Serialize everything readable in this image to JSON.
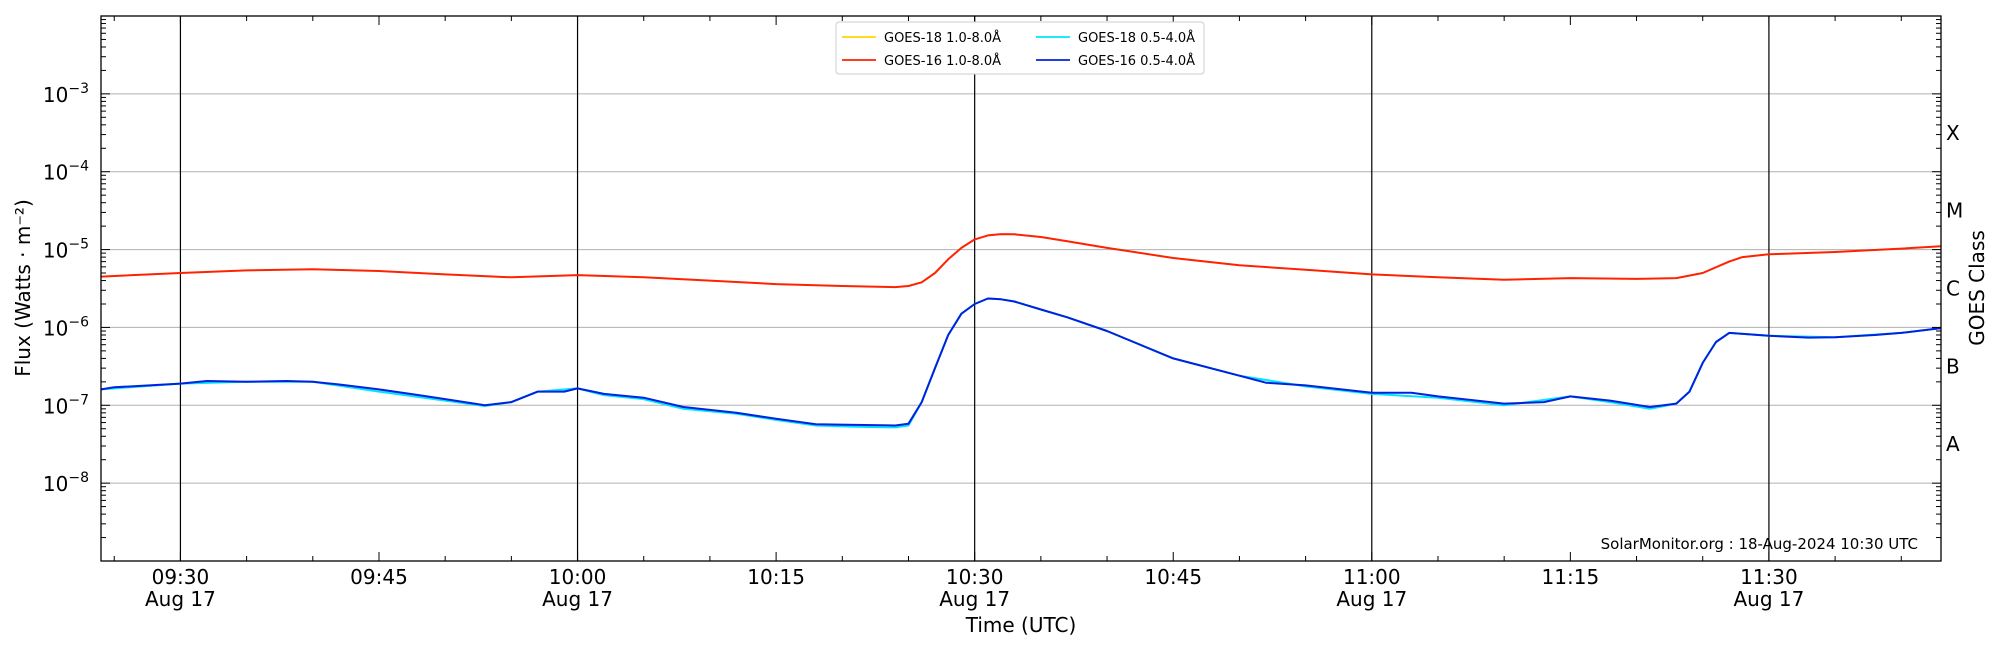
{
  "chart_data": {
    "type": "line",
    "y_scale": "log",
    "x_label": "Time (UTC)",
    "y_label": "Flux (Watts · m⁻²)",
    "y2_label": "GOES Class",
    "x_range": [
      "09:24",
      "11:43"
    ],
    "y_range": [
      1e-09,
      0.01
    ],
    "grid": "horizontal at decades; vertical at 30-minute marks",
    "legend_placement": "top-center",
    "x_tick_labels": [
      {
        "time": "09:30",
        "line1": "09:30",
        "line2": "Aug 17"
      },
      {
        "time": "09:45",
        "line1": "09:45",
        "line2": ""
      },
      {
        "time": "10:00",
        "line1": "10:00",
        "line2": "Aug 17"
      },
      {
        "time": "10:15",
        "line1": "10:15",
        "line2": ""
      },
      {
        "time": "10:30",
        "line1": "10:30",
        "line2": "Aug 17"
      },
      {
        "time": "10:45",
        "line1": "10:45",
        "line2": ""
      },
      {
        "time": "11:00",
        "line1": "11:00",
        "line2": "Aug 17"
      },
      {
        "time": "11:15",
        "line1": "11:15",
        "line2": ""
      },
      {
        "time": "11:30",
        "line1": "11:30",
        "line2": "Aug 17"
      }
    ],
    "vertical_lines": [
      "09:30",
      "10:00",
      "10:30",
      "11:00",
      "11:30"
    ],
    "y_tick_labels": [
      {
        "value": 1e-08,
        "base": "10",
        "exp": "−8"
      },
      {
        "value": 1e-07,
        "base": "10",
        "exp": "−7"
      },
      {
        "value": 1e-06,
        "base": "10",
        "exp": "−6"
      },
      {
        "value": 1e-05,
        "base": "10",
        "exp": "−5"
      },
      {
        "value": 0.0001,
        "base": "10",
        "exp": "−4"
      },
      {
        "value": 0.001,
        "base": "10",
        "exp": "−3"
      }
    ],
    "goes_classes": [
      {
        "label": "A",
        "value": 3.16e-08
      },
      {
        "label": "B",
        "value": 3.16e-07
      },
      {
        "label": "C",
        "value": 3.16e-06
      },
      {
        "label": "M",
        "value": 3.16e-05
      },
      {
        "label": "X",
        "value": 0.000316
      }
    ],
    "series": [
      {
        "name": "GOES-18 1.0-8.0Å",
        "color": "#ffd700",
        "points": []
      },
      {
        "name": "GOES-16 1.0-8.0Å",
        "color": "#ff2200",
        "points": [
          [
            "09:24",
            4.5e-06
          ],
          [
            "09:30",
            5e-06
          ],
          [
            "09:35",
            5.4e-06
          ],
          [
            "09:40",
            5.6e-06
          ],
          [
            "09:45",
            5.3e-06
          ],
          [
            "09:50",
            4.8e-06
          ],
          [
            "09:55",
            4.4e-06
          ],
          [
            "10:00",
            4.7e-06
          ],
          [
            "10:05",
            4.4e-06
          ],
          [
            "10:10",
            4e-06
          ],
          [
            "10:15",
            3.6e-06
          ],
          [
            "10:20",
            3.4e-06
          ],
          [
            "10:24",
            3.3e-06
          ],
          [
            "10:25",
            3.4e-06
          ],
          [
            "10:26",
            3.8e-06
          ],
          [
            "10:27",
            5e-06
          ],
          [
            "10:28",
            7.5e-06
          ],
          [
            "10:29",
            1.05e-05
          ],
          [
            "10:30",
            1.35e-05
          ],
          [
            "10:31",
            1.52e-05
          ],
          [
            "10:32",
            1.58e-05
          ],
          [
            "10:33",
            1.57e-05
          ],
          [
            "10:35",
            1.45e-05
          ],
          [
            "10:37",
            1.28e-05
          ],
          [
            "10:40",
            1.05e-05
          ],
          [
            "10:45",
            7.8e-06
          ],
          [
            "10:50",
            6.3e-06
          ],
          [
            "10:55",
            5.5e-06
          ],
          [
            "11:00",
            4.8e-06
          ],
          [
            "11:05",
            4.4e-06
          ],
          [
            "11:10",
            4.1e-06
          ],
          [
            "11:15",
            4.3e-06
          ],
          [
            "11:20",
            4.2e-06
          ],
          [
            "11:23",
            4.3e-06
          ],
          [
            "11:25",
            5e-06
          ],
          [
            "11:27",
            7e-06
          ],
          [
            "11:28",
            8e-06
          ],
          [
            "11:30",
            8.7e-06
          ],
          [
            "11:35",
            9.3e-06
          ],
          [
            "11:40",
            1.03e-05
          ],
          [
            "11:43",
            1.1e-05
          ]
        ]
      },
      {
        "name": "GOES-18 0.5-4.0Å",
        "color": "#00e5ff",
        "points": [
          [
            "09:24",
            1.6e-07
          ],
          [
            "09:30",
            1.9e-07
          ],
          [
            "09:35",
            2e-07
          ],
          [
            "09:40",
            2e-07
          ],
          [
            "09:45",
            1.5e-07
          ],
          [
            "09:50",
            1.15e-07
          ],
          [
            "09:53",
            9.8e-08
          ],
          [
            "09:55",
            1.1e-07
          ],
          [
            "09:57",
            1.5e-07
          ],
          [
            "10:00",
            1.65e-07
          ],
          [
            "10:02",
            1.35e-07
          ],
          [
            "10:05",
            1.2e-07
          ],
          [
            "10:08",
            9e-08
          ],
          [
            "10:12",
            7.8e-08
          ],
          [
            "10:15",
            6.5e-08
          ],
          [
            "10:18",
            5.5e-08
          ],
          [
            "10:21",
            5.3e-08
          ],
          [
            "10:24",
            5.2e-08
          ],
          [
            "10:25",
            5.5e-08
          ],
          [
            "10:26",
            1.1e-07
          ],
          [
            "10:27",
            3e-07
          ],
          [
            "10:28",
            8e-07
          ],
          [
            "10:29",
            1.5e-06
          ],
          [
            "10:30",
            2e-06
          ],
          [
            "10:31",
            2.35e-06
          ],
          [
            "10:32",
            2.3e-06
          ],
          [
            "10:33",
            2.15e-06
          ],
          [
            "10:35",
            1.7e-06
          ],
          [
            "10:37",
            1.35e-06
          ],
          [
            "10:40",
            9e-07
          ],
          [
            "10:45",
            4e-07
          ],
          [
            "10:50",
            2.4e-07
          ],
          [
            "10:55",
            1.75e-07
          ],
          [
            "11:00",
            1.4e-07
          ],
          [
            "11:05",
            1.25e-07
          ],
          [
            "11:10",
            1e-07
          ],
          [
            "11:15",
            1.3e-07
          ],
          [
            "11:18",
            1.1e-07
          ],
          [
            "11:21",
            9e-08
          ],
          [
            "11:23",
            1.05e-07
          ],
          [
            "11:24",
            1.5e-07
          ],
          [
            "11:25",
            3.5e-07
          ],
          [
            "11:26",
            6.5e-07
          ],
          [
            "11:27",
            8.5e-07
          ],
          [
            "11:30",
            7.8e-07
          ],
          [
            "11:35",
            7.5e-07
          ],
          [
            "11:40",
            8.5e-07
          ],
          [
            "11:43",
            9.8e-07
          ]
        ]
      },
      {
        "name": "GOES-16 0.5-4.0Å",
        "color": "#0022dd",
        "points": [
          [
            "09:24",
            1.6e-07
          ],
          [
            "09:25",
            1.7e-07
          ],
          [
            "09:30",
            1.9e-07
          ],
          [
            "09:32",
            2.05e-07
          ],
          [
            "09:35",
            2e-07
          ],
          [
            "09:38",
            2.05e-07
          ],
          [
            "09:40",
            2e-07
          ],
          [
            "09:42",
            1.85e-07
          ],
          [
            "09:45",
            1.6e-07
          ],
          [
            "09:48",
            1.35e-07
          ],
          [
            "09:50",
            1.2e-07
          ],
          [
            "09:53",
            1e-07
          ],
          [
            "09:55",
            1.1e-07
          ],
          [
            "09:57",
            1.5e-07
          ],
          [
            "09:59",
            1.5e-07
          ],
          [
            "10:00",
            1.65e-07
          ],
          [
            "10:02",
            1.4e-07
          ],
          [
            "10:05",
            1.25e-07
          ],
          [
            "10:08",
            9.5e-08
          ],
          [
            "10:12",
            8e-08
          ],
          [
            "10:15",
            6.7e-08
          ],
          [
            "10:18",
            5.7e-08
          ],
          [
            "10:21",
            5.6e-08
          ],
          [
            "10:24",
            5.5e-08
          ],
          [
            "10:25",
            5.8e-08
          ],
          [
            "10:26",
            1.1e-07
          ],
          [
            "10:27",
            3e-07
          ],
          [
            "10:28",
            8e-07
          ],
          [
            "10:29",
            1.5e-06
          ],
          [
            "10:30",
            2e-06
          ],
          [
            "10:31",
            2.35e-06
          ],
          [
            "10:32",
            2.3e-06
          ],
          [
            "10:33",
            2.15e-06
          ],
          [
            "10:35",
            1.7e-06
          ],
          [
            "10:37",
            1.35e-06
          ],
          [
            "10:40",
            9e-07
          ],
          [
            "10:45",
            4e-07
          ],
          [
            "10:50",
            2.4e-07
          ],
          [
            "10:52",
            1.95e-07
          ],
          [
            "10:55",
            1.8e-07
          ],
          [
            "11:00",
            1.45e-07
          ],
          [
            "11:03",
            1.45e-07
          ],
          [
            "11:05",
            1.3e-07
          ],
          [
            "11:10",
            1.05e-07
          ],
          [
            "11:13",
            1.1e-07
          ],
          [
            "11:15",
            1.3e-07
          ],
          [
            "11:18",
            1.15e-07
          ],
          [
            "11:21",
            9.5e-08
          ],
          [
            "11:23",
            1.05e-07
          ],
          [
            "11:24",
            1.5e-07
          ],
          [
            "11:25",
            3.5e-07
          ],
          [
            "11:26",
            6.5e-07
          ],
          [
            "11:27",
            8.5e-07
          ],
          [
            "11:30",
            7.8e-07
          ],
          [
            "11:33",
            7.4e-07
          ],
          [
            "11:35",
            7.5e-07
          ],
          [
            "11:38",
            8e-07
          ],
          [
            "11:40",
            8.5e-07
          ],
          [
            "11:43",
            9.8e-07
          ]
        ]
      }
    ],
    "annotation": "SolarMonitor.org : 18-Aug-2024 10:30 UTC"
  }
}
